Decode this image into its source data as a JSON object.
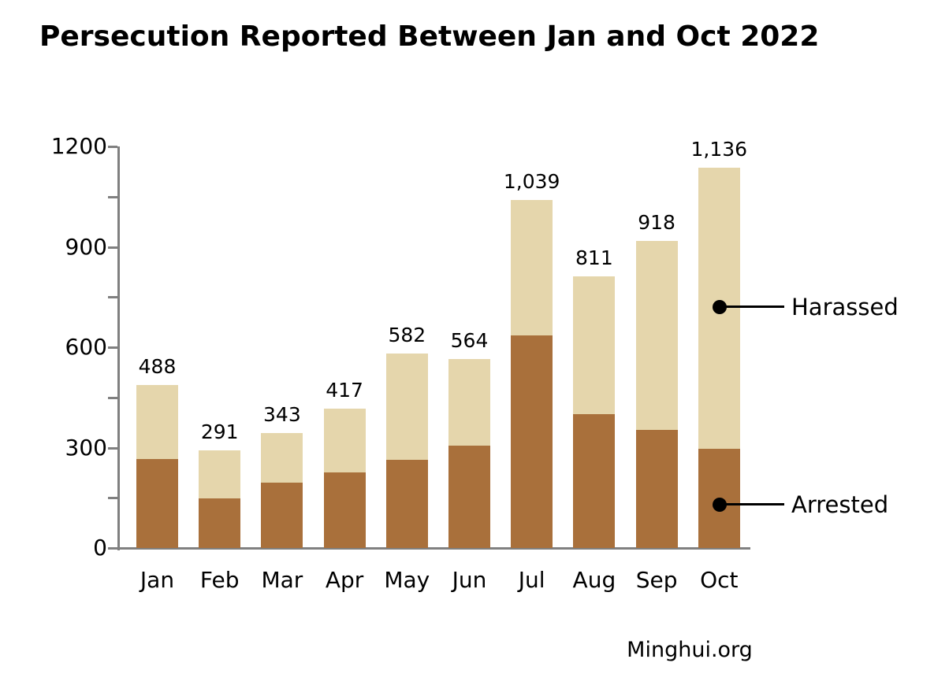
{
  "title": "Persecution Reported Between Jan and Oct 2022",
  "source": "Minghui.org",
  "colors": {
    "arrested": "#A9703B",
    "harassed": "#E5D6AC",
    "axis": "#808080",
    "text": "#000000",
    "background": "#FFFFFF"
  },
  "chart_data": {
    "type": "bar",
    "stacked": true,
    "title": "Persecution Reported Between Jan and Oct 2022",
    "xlabel": "",
    "ylabel": "",
    "categories": [
      "Jan",
      "Feb",
      "Mar",
      "Apr",
      "May",
      "Jun",
      "Jul",
      "Aug",
      "Sep",
      "Oct"
    ],
    "series": [
      {
        "name": "Arrested",
        "color": "#A9703B",
        "values": [
          266,
          149,
          196,
          227,
          264,
          307,
          635,
          401,
          352,
          297
        ]
      },
      {
        "name": "Harassed",
        "color": "#E5D6AC",
        "values": [
          222,
          142,
          147,
          190,
          318,
          257,
          404,
          410,
          566,
          839
        ]
      }
    ],
    "totals": [
      488,
      291,
      343,
      417,
      582,
      564,
      1039,
      811,
      918,
      1136
    ],
    "total_labels": [
      "488",
      "291",
      "343",
      "417",
      "582",
      "564",
      "1,039",
      "811",
      "918",
      "1,136"
    ],
    "ylim": [
      0,
      1200
    ],
    "ytick_major": [
      0,
      300,
      600,
      900,
      1200
    ],
    "ytick_minor_step": 150,
    "grid": false,
    "legend_position": "right-callouts",
    "legend": [
      {
        "label": "Harassed",
        "anchor_value": 720
      },
      {
        "label": "Arrested",
        "anchor_value": 129
      }
    ],
    "annotations": [
      "Minghui.org"
    ]
  }
}
